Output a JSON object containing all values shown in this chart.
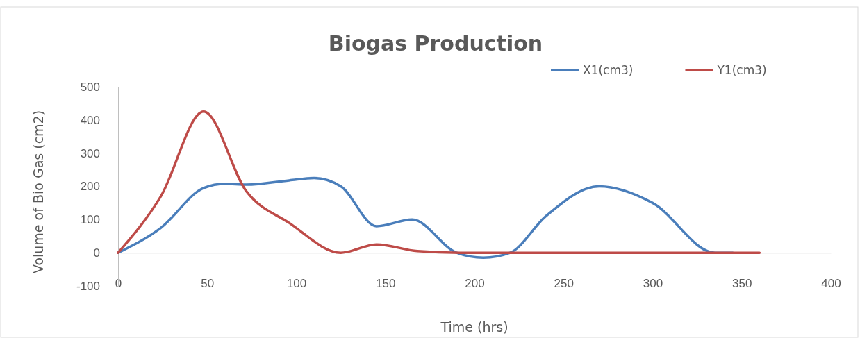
{
  "chart_data": {
    "type": "line",
    "title": "Biogas Production",
    "xlabel": "Time (hrs)",
    "ylabel": "Volume of Bio Gas (cm2)",
    "xlim": [
      0,
      400
    ],
    "xticks": [
      0,
      50,
      100,
      150,
      200,
      250,
      300,
      350,
      400
    ],
    "ylim": [
      -100,
      500
    ],
    "yticks": [
      -100,
      0,
      100,
      200,
      300,
      400,
      500
    ],
    "grid": false,
    "legend": "top right",
    "marker": "none",
    "line_style": "solid",
    "series": [
      {
        "name": "X1(cm3)",
        "color": "#4a7ebb",
        "x": [
          0,
          24,
          48,
          60,
          72,
          96,
          110,
          125,
          145,
          165,
          190,
          205,
          220,
          240,
          270,
          300,
          335,
          345
        ],
        "values": [
          0,
          75,
          195,
          208,
          205,
          218,
          225,
          200,
          80,
          100,
          0,
          -15,
          0,
          110,
          200,
          150,
          0,
          0
        ]
      },
      {
        "name": "Y1(cm3)",
        "color": "#be4b48",
        "x": [
          0,
          24,
          48,
          72,
          96,
          125,
          145,
          168,
          192,
          360
        ],
        "values": [
          0,
          170,
          425,
          185,
          90,
          0,
          25,
          5,
          0,
          0
        ]
      }
    ]
  }
}
